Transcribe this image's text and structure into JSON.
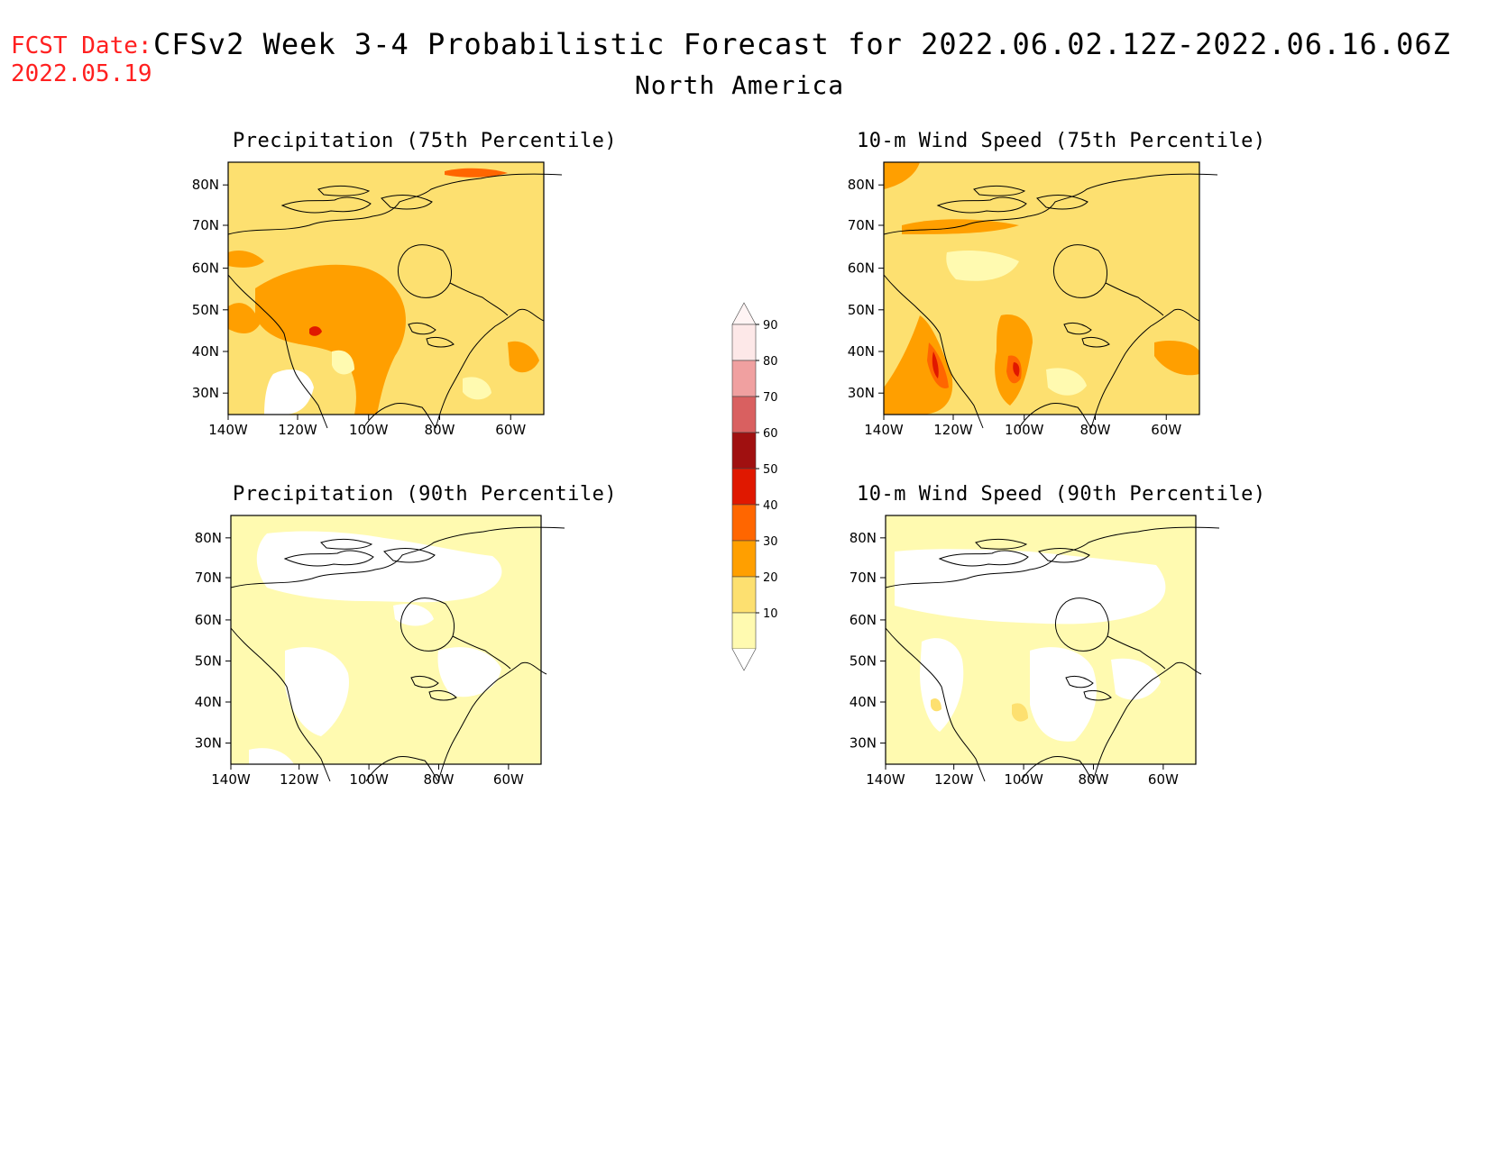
{
  "header": {
    "fcst_label": "FCST Date:",
    "fcst_date": "2022.05.19",
    "title": "CFSv2 Week 3-4 Probabilistic Forecast for 2022.06.02.12Z-2022.06.16.06Z",
    "region": "North America"
  },
  "panels": [
    {
      "title": "Precipitation (75th Percentile)"
    },
    {
      "title": "10-m Wind Speed (75th Percentile)"
    },
    {
      "title": "Precipitation (90th Percentile)"
    },
    {
      "title": "10-m Wind Speed (90th Percentile)"
    }
  ],
  "axes": {
    "lat_labels": [
      "80N",
      "70N",
      "60N",
      "50N",
      "40N",
      "30N"
    ],
    "lon_labels": [
      "140W",
      "120W",
      "100W",
      "80W",
      "60W"
    ]
  },
  "colorbar": {
    "levels": [
      "90",
      "80",
      "70",
      "60",
      "50",
      "40",
      "30",
      "20",
      "10"
    ],
    "colors": [
      "#fde8e8",
      "#f0a0a0",
      "#d96060",
      "#a01010",
      "#e01800",
      "#ff6600",
      "#ff9f00",
      "#fde070",
      "#fffab0"
    ]
  }
}
